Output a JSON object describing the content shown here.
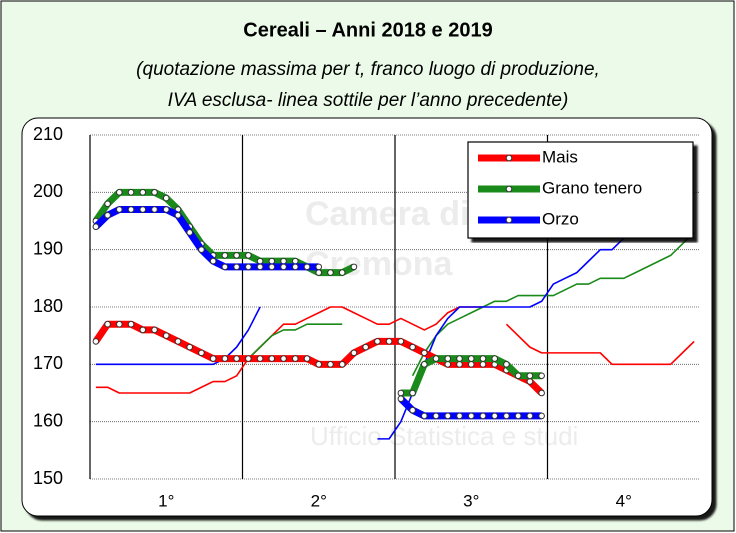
{
  "chart_data": {
    "type": "line",
    "title": "Cereali – Anni 2018 e 2019",
    "subtitle": [
      "(quotazione massima per t, franco luogo di produzione,",
      "IVA esclusa- linea sottile per l’anno precedente)"
    ],
    "watermark": [
      "Camera di",
      "Cremona",
      "Ufficio Statistica e studi"
    ],
    "x": [
      0.5,
      1.5,
      2.5,
      3.5,
      4.5,
      5.5,
      6.5,
      7.5,
      8.5,
      9.5,
      10.5,
      11.5,
      12.5,
      13.5,
      14.5,
      15.5,
      16.5,
      17.5,
      18.5,
      19.5,
      20.5,
      21.5,
      22.5,
      23.5,
      24.5,
      25.5,
      26.5,
      27.5,
      28.5,
      29.5,
      30.5,
      31.5,
      32.5,
      33.5,
      34.5,
      35.5,
      36.5,
      37.5,
      38.5,
      39.5,
      40.5,
      41.5,
      42.5,
      43.5,
      44.5,
      45.5,
      46.5,
      47.5,
      48.5,
      49.5,
      50.5,
      51.5
    ],
    "xlim": [
      0,
      52
    ],
    "xticks": [
      {
        "value": 6.5,
        "label": "1°"
      },
      {
        "value": 19.5,
        "label": "2°"
      },
      {
        "value": 32.5,
        "label": "3°"
      },
      {
        "value": 45.5,
        "label": "4°"
      }
    ],
    "ylim": [
      150,
      210
    ],
    "yticks": [
      150,
      160,
      170,
      180,
      190,
      200,
      210
    ],
    "grid": true,
    "legend": "top-right",
    "series": [
      {
        "color": "#ff0000",
        "style": "thin",
        "values": [
          166,
          166,
          165,
          165,
          165,
          165,
          165,
          165,
          165,
          166,
          167,
          167,
          168,
          171,
          173,
          175,
          177,
          177,
          178,
          179,
          180,
          180,
          179,
          178,
          177,
          177,
          178,
          177,
          176,
          177,
          179,
          180,
          180,
          180,
          null,
          177,
          175,
          173,
          172,
          172,
          172,
          172,
          172,
          172,
          170,
          170,
          170,
          170,
          170,
          170,
          172,
          174
        ]
      },
      {
        "color": "#1a8a1a",
        "style": "thin",
        "values": [
          null,
          null,
          null,
          null,
          null,
          null,
          null,
          null,
          null,
          null,
          null,
          null,
          null,
          171,
          173,
          175,
          176,
          176,
          177,
          177,
          177,
          177,
          null,
          null,
          null,
          null,
          null,
          168,
          172,
          175,
          177,
          178,
          179,
          180,
          181,
          181,
          182,
          182,
          182,
          182,
          183,
          184,
          184,
          185,
          185,
          185,
          186,
          187,
          188,
          189,
          191,
          193
        ]
      },
      {
        "color": "#0000ff",
        "style": "thin",
        "values": [
          170,
          170,
          170,
          170,
          170,
          170,
          170,
          170,
          170,
          170,
          170,
          171,
          173,
          176,
          180,
          null,
          null,
          null,
          null,
          null,
          null,
          null,
          null,
          null,
          157,
          157,
          160,
          165,
          170,
          175,
          178,
          180,
          180,
          180,
          180,
          180,
          180,
          180,
          181,
          184,
          185,
          186,
          188,
          190,
          190,
          192,
          null,
          null,
          null,
          null,
          null,
          null
        ]
      },
      {
        "name": "Mais",
        "color": "#ff0000",
        "style": "thick",
        "values": [
          174,
          177,
          177,
          177,
          176,
          176,
          175,
          174,
          173,
          172,
          171,
          171,
          171,
          171,
          171,
          171,
          171,
          171,
          171,
          170,
          170,
          170,
          172,
          173,
          174,
          174,
          174,
          173,
          172,
          171,
          170,
          170,
          170,
          170,
          170,
          169,
          168,
          167,
          165,
          null,
          null,
          null,
          null,
          null,
          null,
          null,
          null,
          null,
          null,
          null,
          null,
          null
        ]
      },
      {
        "name": "Grano tenero",
        "color": "#1a8a1a",
        "style": "thick",
        "values": [
          195,
          198,
          200,
          200,
          200,
          200,
          199,
          197,
          194,
          191,
          189,
          189,
          189,
          189,
          188,
          188,
          188,
          188,
          187,
          186,
          186,
          186,
          187,
          null,
          null,
          null,
          165,
          165,
          170,
          171,
          171,
          171,
          171,
          171,
          171,
          170,
          168,
          168,
          168,
          null,
          null,
          null,
          null,
          null,
          null,
          null,
          null,
          null,
          null,
          null,
          null,
          null
        ]
      },
      {
        "name": "Orzo",
        "color": "#0000ff",
        "style": "thick",
        "values": [
          194,
          196,
          197,
          197,
          197,
          197,
          197,
          196,
          193,
          190,
          188,
          187,
          187,
          187,
          187,
          187,
          187,
          187,
          187,
          187,
          null,
          null,
          null,
          null,
          null,
          null,
          164,
          162,
          161,
          161,
          161,
          161,
          161,
          161,
          161,
          161,
          161,
          161,
          161,
          null,
          null,
          null,
          null,
          null,
          null,
          null,
          null,
          null,
          null,
          null,
          null,
          null
        ]
      }
    ]
  }
}
